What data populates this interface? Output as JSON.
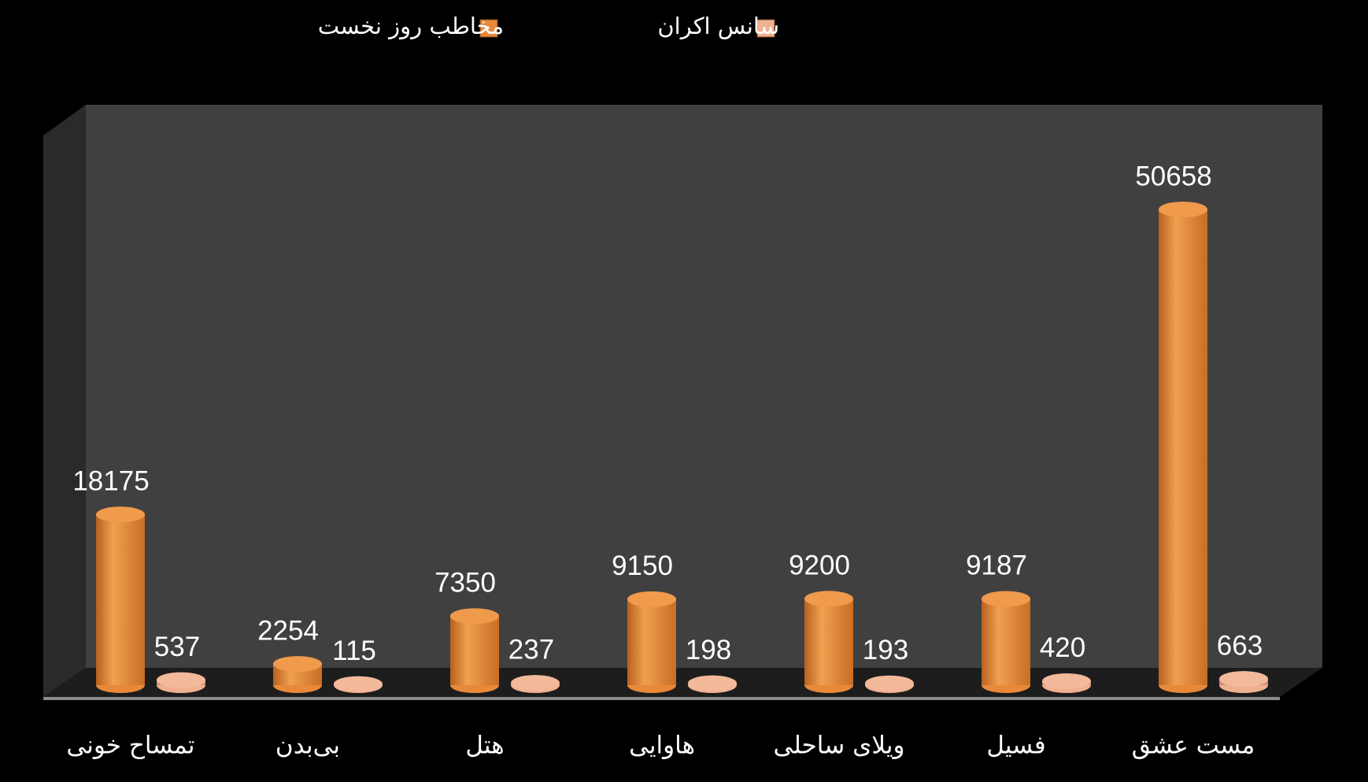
{
  "chart_data": {
    "type": "bar3d",
    "categories": [
      "تمساح خونی",
      "بی‌بدن",
      "هتل",
      "هاوایی",
      "ویلای ساحلی",
      "فسیل",
      "مست عشق"
    ],
    "series": [
      {
        "name": "مخاطب روز نخست",
        "color": "#e8893a",
        "values": [
          18175,
          2254,
          7350,
          9150,
          9200,
          9187,
          50658
        ]
      },
      {
        "name": "سانس اکران",
        "color": "#f0b090",
        "values": [
          537,
          115,
          237,
          198,
          193,
          420,
          663
        ]
      }
    ]
  }
}
